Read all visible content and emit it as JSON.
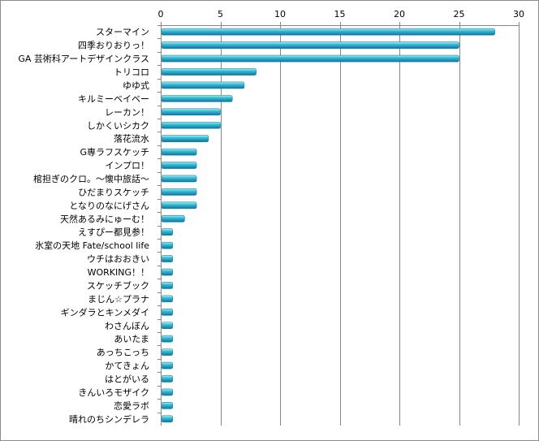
{
  "chart_data": {
    "type": "bar",
    "orientation": "horizontal",
    "title": "",
    "xlabel": "",
    "ylabel": "",
    "xlim": [
      0,
      30
    ],
    "x_ticks": [
      0,
      5,
      10,
      15,
      20,
      25,
      30
    ],
    "x_axis_position": "top",
    "grid": "vertical",
    "legend": "none",
    "bar_color": "#2fb5c8",
    "categories": [
      "スターマイン",
      "四季おりおりっ！",
      "GA 芸術科アートデザインクラス",
      "トリコロ",
      "ゆゆ式",
      "キルミーベイベー",
      "レーカン！",
      "しかくいシカク",
      "落花流水",
      "G専ラフスケッチ",
      "インプロ！",
      "棺担ぎのクロ。～懐中旅話～",
      "ひだまりスケッチ",
      "となりのなにげさん",
      "天然あるみにゅーむ！",
      "えすぴー都見参！",
      "氷室の天地 Fate/school life",
      "ウチはおおきい",
      "WORKING！！",
      "スケッチブック",
      "まじん☆プラナ",
      "ギンダラとキンメダイ",
      "わさんぼん",
      "あいたま",
      "あっちこっち",
      "かてきょん",
      "はとがいる",
      "きんいろモザイク",
      "恋愛ラボ",
      "晴れのちシンデレラ"
    ],
    "values": [
      28,
      25,
      25,
      8,
      7,
      6,
      5,
      5,
      4,
      3,
      3,
      3,
      3,
      3,
      2,
      1,
      1,
      1,
      1,
      1,
      1,
      1,
      1,
      1,
      1,
      1,
      1,
      1,
      1,
      1
    ]
  }
}
